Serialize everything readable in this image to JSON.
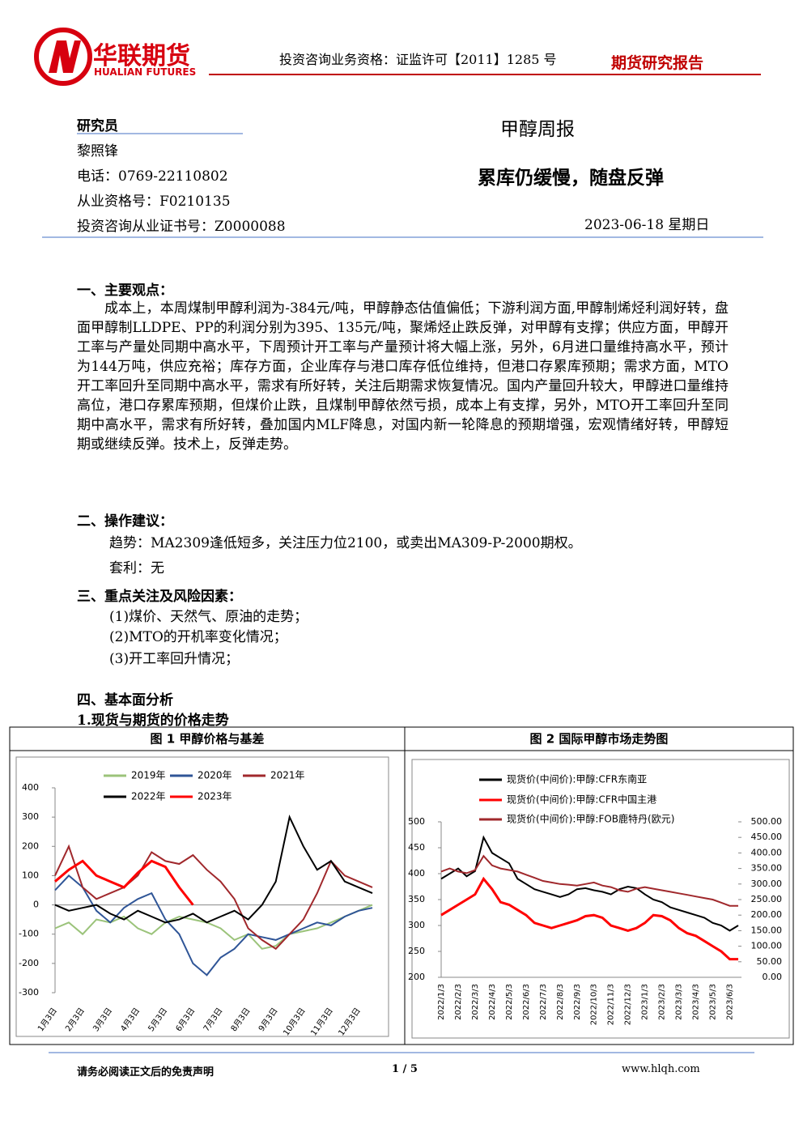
{
  "header": {
    "company": "华联期货",
    "company_en": "HUALIAN FUTURES",
    "qualification": "投资咨询业务资格：证监许可【2011】1285 号",
    "report_type": "期货研究报告"
  },
  "author": {
    "label": "研究员",
    "name": "黎照锋",
    "phone": "电话：0769-22110802",
    "license": "从业资格号：F0210135",
    "cert": "投资咨询从业证书号：Z0000088"
  },
  "report": {
    "title": "甲醇周报",
    "subtitle": "累库仍缓慢，随盘反弹",
    "date": "2023-06-18 星期日"
  },
  "sections": [
    {
      "heading": "一、主要观点：",
      "paragraphs": [
        "成本上，本周煤制甲醇利润为-384元/吨，甲醇静态估值偏低；下游利润方面,甲醇制烯烃利润好转，盘面甲醇制LLDPE、PP的利润分别为395、135元/吨，聚烯烃止跌反弹，对甲醇有支撑；供应方面，甲醇开工率与产量处同期中高水平，下周预计开工率与产量预计将大幅上涨，另外，6月进口量维持高水平，预计为144万吨，供应充裕；库存方面，企业库存与港口库存低位维持，但港口存累库预期；需求方面，MTO开工率回升至同期中高水平，需求有所好转，关注后期需求恢复情况。国内产量回升较大，甲醇进口量维持高位，港口存累库预期，但煤价止跌，且煤制甲醇依然亏损，成本上有支撑，另外，MTO开工率回升至同期中高水平，需求有所好转，叠加国内MLF降息，对国内新一轮降息的预期增强，宏观情绪好转，甲醇短期或继续反弹。技术上，反弹走势。"
      ]
    },
    {
      "heading": "二、操作建议：",
      "paragraphs": [
        "趋势：MA2309逢低短多，关注压力位2100，或卖出MA309-P-2000期权。",
        "套利：无"
      ]
    },
    {
      "heading": "三、重点关注及风险因素：",
      "paragraphs": [
        "(1)煤价、天然气、原油的走势；",
        "(2)MTO的开机率变化情况；",
        "(3)开工率回升情况；"
      ]
    },
    {
      "heading": "四、基本面分析",
      "paragraphs": [
        "1.现货与期货的价格走势"
      ]
    }
  ],
  "chart_data": [
    {
      "type": "line",
      "title": "图 1 甲醇价格与基差",
      "categories": [
        "1月3日",
        null,
        "2月3日",
        null,
        "3月3日",
        null,
        "4月3日",
        null,
        "5月3日",
        null,
        "6月3日",
        null,
        "7月3日",
        null,
        "8月3日",
        null,
        "9月3日",
        null,
        "10月3日",
        null,
        "11月3日",
        null,
        "12月3日",
        null
      ],
      "ylim": [
        -300,
        400
      ],
      "yticks": [
        400,
        300,
        200,
        100,
        0,
        -100,
        -200,
        -300
      ],
      "series": [
        {
          "name": "2019年",
          "color": "#9bc37a",
          "values": [
            -80,
            -60,
            -100,
            -50,
            -60,
            -40,
            -80,
            -100,
            -60,
            -40,
            -50,
            -60,
            -80,
            -120,
            -100,
            -150,
            -140,
            -100,
            -90,
            -80,
            -60,
            -40,
            -20,
            0
          ]
        },
        {
          "name": "2020年",
          "color": "#2f5597",
          "values": [
            50,
            100,
            60,
            -20,
            -60,
            -10,
            20,
            40,
            -50,
            -100,
            -200,
            -240,
            -180,
            -150,
            -100,
            -110,
            -120,
            -100,
            -80,
            -60,
            -70,
            -40,
            -20,
            -10
          ]
        },
        {
          "name": "2021年",
          "color": "#a0282c",
          "values": [
            100,
            200,
            60,
            20,
            40,
            60,
            100,
            180,
            150,
            140,
            170,
            120,
            80,
            20,
            -80,
            -120,
            -150,
            -100,
            -50,
            40,
            150,
            100,
            80,
            60
          ]
        },
        {
          "name": "2022年",
          "color": "#000000",
          "values": [
            0,
            -20,
            -10,
            0,
            -30,
            -50,
            -20,
            -40,
            -60,
            -50,
            -30,
            -60,
            -40,
            -20,
            -50,
            0,
            80,
            300,
            200,
            120,
            150,
            80,
            60,
            40
          ]
        },
        {
          "name": "2023年",
          "color": "#ff0000",
          "values": [
            80,
            120,
            150,
            100,
            80,
            60,
            110,
            150,
            130,
            60,
            0,
            null,
            null,
            null,
            null,
            null,
            null,
            null,
            null,
            null,
            null,
            null,
            null,
            null
          ]
        }
      ]
    },
    {
      "type": "line",
      "title": "图 2 国际甲醇市场走势图",
      "categories": [
        "2022/1/3",
        null,
        "2022/2/3",
        null,
        "2022/3/3",
        null,
        "2022/4/3",
        null,
        "2022/5/3",
        null,
        "2022/6/3",
        null,
        "2022/7/3",
        null,
        "2022/8/3",
        null,
        "2022/9/3",
        null,
        "2022/10/3",
        null,
        "2022/11/3",
        null,
        "2022/12/3",
        null,
        "2023/1/3",
        null,
        "2023/2/3",
        null,
        "2023/3/3",
        null,
        "2023/4/3",
        null,
        "2023/5/3",
        null,
        "2023/6/3",
        null
      ],
      "ylim": [
        200,
        500
      ],
      "yticks": [
        200,
        250,
        300,
        350,
        400,
        450,
        500
      ],
      "y2lim": [
        0,
        500
      ],
      "y2ticks": [
        {
          "value": 0,
          "label": "0.00"
        },
        {
          "value": 50,
          "label": "50.00"
        },
        {
          "value": 100,
          "label": "100.00"
        },
        {
          "value": 150,
          "label": "150.00"
        },
        {
          "value": 200,
          "label": "200.00"
        },
        {
          "value": 250,
          "label": "250.00"
        },
        {
          "value": 300,
          "label": "300.00"
        },
        {
          "value": 350,
          "label": "350.00"
        },
        {
          "value": 400,
          "label": "400.00"
        },
        {
          "value": 450,
          "label": "450.00"
        },
        {
          "value": 500,
          "label": "500.00"
        }
      ],
      "series": [
        {
          "name": "现货价(中间价):甲醇:CFR东南亚",
          "color": "#000000",
          "values": [
            390,
            400,
            410,
            395,
            405,
            470,
            440,
            430,
            420,
            390,
            380,
            370,
            365,
            360,
            355,
            360,
            370,
            372,
            368,
            365,
            360,
            370,
            375,
            372,
            360,
            350,
            345,
            335,
            330,
            325,
            320,
            315,
            305,
            300,
            290,
            300
          ]
        },
        {
          "name": "现货价(中间价):甲醇:CFR中国主港",
          "color": "#ff0000",
          "values": [
            320,
            330,
            340,
            350,
            360,
            390,
            370,
            345,
            340,
            330,
            320,
            305,
            300,
            295,
            300,
            305,
            310,
            318,
            320,
            315,
            300,
            295,
            290,
            295,
            305,
            320,
            318,
            310,
            295,
            285,
            280,
            270,
            260,
            250,
            235,
            235
          ]
        },
        {
          "name": "现货价(中间价):甲醇:FOB鹿特丹(欧元)",
          "color": "#a0282c",
          "axis": "y2",
          "values": [
            340,
            350,
            340,
            335,
            345,
            390,
            360,
            350,
            345,
            340,
            330,
            320,
            310,
            305,
            300,
            298,
            295,
            300,
            305,
            295,
            290,
            280,
            275,
            285,
            290,
            285,
            280,
            275,
            270,
            265,
            260,
            255,
            250,
            240,
            230,
            230
          ]
        }
      ]
    }
  ],
  "footer": {
    "disclaimer": "请务必阅读正文后的免责声明",
    "page": "1 / 5",
    "website": "www.hlqh.com"
  }
}
